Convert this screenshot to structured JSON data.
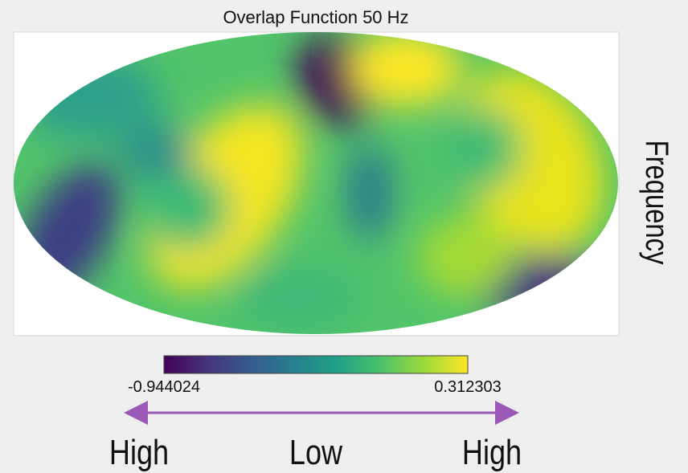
{
  "chart_data": {
    "type": "heatmap",
    "projection": "mollweide",
    "title": "Overlap Function 50 Hz",
    "colormap": "viridis",
    "colorbar": {
      "min_label": "-0.944024",
      "max_label": "0.312303",
      "min": -0.944024,
      "max": 0.312303
    },
    "colors": {
      "viridis": [
        "#440154",
        "#46327e",
        "#365c8d",
        "#277f8e",
        "#1fa187",
        "#4ac16d",
        "#a0da39",
        "#fde725"
      ],
      "arrow": "#9b59b6",
      "page_background": "#efefef",
      "plot_background": "#ffffff"
    }
  },
  "annotations": {
    "side_label": "Frequency",
    "left_label": "High",
    "center_label": "Low",
    "right_label": "High"
  }
}
